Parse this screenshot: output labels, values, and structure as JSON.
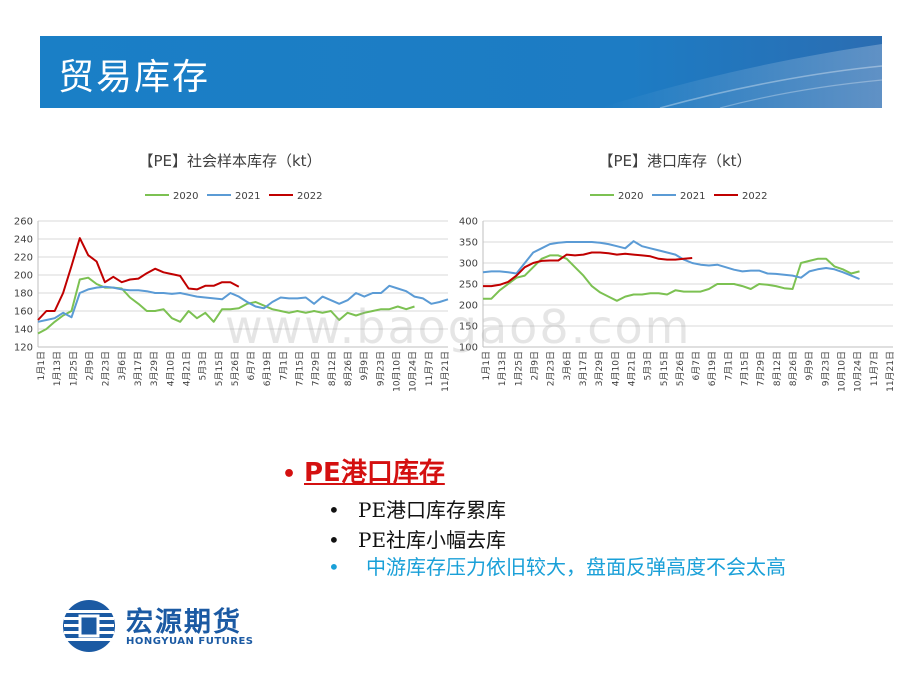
{
  "slide": {
    "title": "贸易库存",
    "watermark": "www.baogao8.com"
  },
  "bullets": {
    "main": "PE港口库存",
    "subs": [
      "PE港口库存累库",
      "PE社库小幅去库"
    ],
    "note": "中游库存压力依旧较大，盘面反弹高度不会太高"
  },
  "logo": {
    "name_cn": "宏源期货",
    "name_en": "HONGYUAN FUTURES"
  },
  "colors": {
    "banner": "#1a7fc6",
    "s2020": "#7cc152",
    "s2021": "#5b9bd5",
    "s2022": "#c00000",
    "bullet_main": "#d41010",
    "note": "#1aa0d8",
    "brand": "#1b5aa3"
  },
  "chart_data": [
    {
      "type": "line",
      "title": "【PE】社会样本库存（kt）",
      "ylim": [
        120,
        260
      ],
      "yticks": [
        120,
        140,
        160,
        180,
        200,
        220,
        240,
        260
      ],
      "x_labels": [
        "1月1日",
        "1月13日",
        "1月25日",
        "2月9日",
        "2月23日",
        "3月6日",
        "3月17日",
        "3月29日",
        "4月10日",
        "4月21日",
        "5月3日",
        "5月15日",
        "5月26日",
        "6月7日",
        "6月19日",
        "7月1日",
        "7月15日",
        "7月29日",
        "8月12日",
        "8月26日",
        "9月9日",
        "9月23日",
        "10月10日",
        "10月24日",
        "11月7日",
        "11月21日"
      ],
      "series": [
        {
          "name": "2020",
          "color": "#7cc152",
          "values": [
            135,
            140,
            148,
            155,
            160,
            195,
            197,
            190,
            186,
            186,
            185,
            175,
            168,
            160,
            160,
            162,
            152,
            148,
            160,
            152,
            158,
            148,
            162,
            162,
            163,
            168,
            170,
            166,
            162,
            160,
            158,
            160,
            158,
            160,
            158,
            160,
            150,
            158,
            155,
            158,
            160,
            162,
            162,
            165,
            162,
            165
          ]
        },
        {
          "name": "2021",
          "color": "#5b9bd5",
          "values": [
            148,
            150,
            152,
            158,
            153,
            180,
            184,
            186,
            187,
            186,
            184,
            183,
            183,
            182,
            180,
            180,
            179,
            180,
            178,
            176,
            175,
            174,
            173,
            180,
            176,
            170,
            165,
            163,
            170,
            175,
            174,
            174,
            175,
            168,
            176,
            172,
            168,
            172,
            180,
            176,
            180,
            180,
            188,
            185,
            182,
            176,
            174,
            168,
            170,
            173
          ]
        },
        {
          "name": "2022",
          "color": "#c00000",
          "values": [
            150,
            160,
            160,
            180,
            210,
            241,
            222,
            215,
            192,
            198,
            192,
            195,
            196,
            202,
            207,
            203,
            201,
            199,
            185,
            184,
            188,
            188,
            192,
            192,
            187
          ]
        }
      ]
    },
    {
      "type": "line",
      "title": "【PE】港口库存（kt）",
      "ylim": [
        100,
        400
      ],
      "yticks": [
        100,
        150,
        200,
        250,
        300,
        350,
        400
      ],
      "x_labels": [
        "1月1日",
        "1月13日",
        "1月25日",
        "2月9日",
        "2月23日",
        "3月6日",
        "3月17日",
        "3月29日",
        "4月10日",
        "4月21日",
        "5月3日",
        "5月15日",
        "5月26日",
        "6月7日",
        "6月19日",
        "7月1日",
        "7月15日",
        "7月29日",
        "8月12日",
        "8月26日",
        "9月9日",
        "9月23日",
        "10月10日",
        "10月24日",
        "11月7日",
        "11月21日"
      ],
      "series": [
        {
          "name": "2020",
          "color": "#7cc152",
          "values": [
            215,
            215,
            235,
            250,
            265,
            270,
            290,
            310,
            318,
            318,
            310,
            290,
            270,
            245,
            230,
            220,
            210,
            220,
            225,
            225,
            228,
            228,
            225,
            235,
            232,
            232,
            232,
            238,
            250,
            250,
            250,
            245,
            238,
            250,
            248,
            245,
            240,
            238,
            300,
            305,
            310,
            310,
            292,
            285,
            275,
            280
          ]
        },
        {
          "name": "2021",
          "color": "#5b9bd5",
          "values": [
            278,
            280,
            280,
            278,
            275,
            300,
            325,
            335,
            345,
            348,
            350,
            350,
            350,
            350,
            348,
            345,
            340,
            335,
            352,
            340,
            335,
            330,
            325,
            320,
            308,
            300,
            296,
            294,
            296,
            290,
            284,
            280,
            282,
            282,
            275,
            274,
            272,
            270,
            265,
            280,
            285,
            288,
            285,
            278,
            270,
            262
          ]
        },
        {
          "name": "2022",
          "color": "#c00000",
          "values": [
            245,
            245,
            248,
            255,
            270,
            290,
            300,
            305,
            306,
            306,
            320,
            318,
            320,
            325,
            325,
            323,
            320,
            322,
            320,
            318,
            316,
            310,
            308,
            308,
            310,
            312
          ]
        }
      ]
    }
  ]
}
